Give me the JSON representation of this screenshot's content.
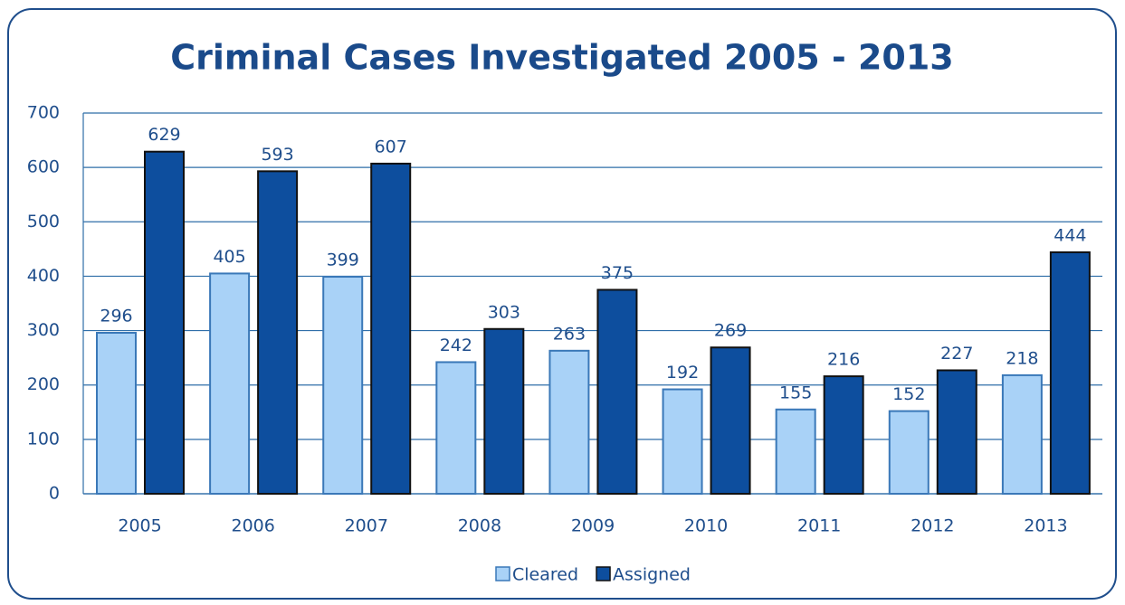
{
  "chart_data": {
    "type": "bar",
    "title": "Criminal Cases Investigated 2005 - 2013",
    "categories": [
      "2005",
      "2006",
      "2007",
      "2008",
      "2009",
      "2010",
      "2011",
      "2012",
      "2013"
    ],
    "series": [
      {
        "name": "Cleared",
        "color": "#a9d2f7",
        "values": [
          296,
          405,
          399,
          242,
          263,
          192,
          155,
          152,
          218
        ]
      },
      {
        "name": "Assigned",
        "color": "#0d4e9e",
        "values": [
          629,
          593,
          607,
          303,
          375,
          269,
          216,
          227,
          444
        ]
      }
    ],
    "ylim": [
      0,
      700
    ],
    "yticks": [
      0,
      100,
      200,
      300,
      400,
      500,
      600,
      700
    ],
    "grid": true,
    "legend": "bottom"
  }
}
